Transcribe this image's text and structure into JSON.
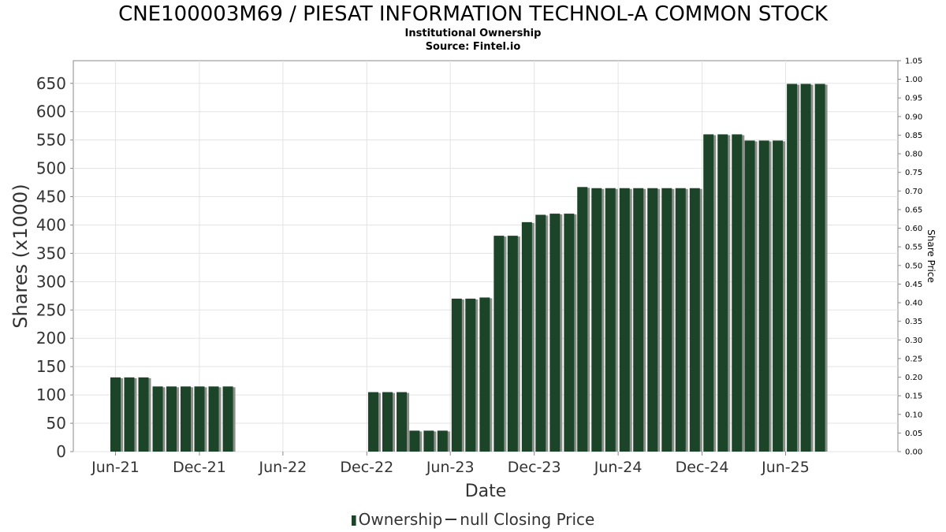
{
  "chart_data": {
    "type": "bar",
    "title": "CNE100003M69 / PIESAT INFORMATION TECHNOL-A COMMON STOCK",
    "subtitle_lines": [
      "Institutional Ownership",
      "Source: Fintel.io"
    ],
    "xlabel": "Date",
    "ylabel": "Shares (x1000)",
    "y2label": "Share Price",
    "ylim": [
      0,
      690
    ],
    "y2lim": [
      0,
      1.05
    ],
    "yticks": [
      0,
      50,
      100,
      150,
      200,
      250,
      300,
      350,
      400,
      450,
      500,
      550,
      600,
      650
    ],
    "y2ticks": [
      "0.00",
      "0.05",
      "0.10",
      "0.15",
      "0.20",
      "0.25",
      "0.30",
      "0.35",
      "0.40",
      "0.45",
      "0.50",
      "0.55",
      "0.60",
      "0.65",
      "0.70",
      "0.75",
      "0.80",
      "0.85",
      "0.90",
      "0.95",
      "1.00",
      "1.05"
    ],
    "xticks": [
      {
        "label": "Jun-21",
        "date": "2021-06-01"
      },
      {
        "label": "Dec-21",
        "date": "2021-12-01"
      },
      {
        "label": "Jun-22",
        "date": "2022-06-01"
      },
      {
        "label": "Dec-22",
        "date": "2022-12-01"
      },
      {
        "label": "Jun-23",
        "date": "2023-06-01"
      },
      {
        "label": "Dec-23",
        "date": "2023-12-01"
      },
      {
        "label": "Jun-24",
        "date": "2024-06-01"
      },
      {
        "label": "Dec-24",
        "date": "2024-12-01"
      },
      {
        "label": "Jun-25",
        "date": "2025-06-01"
      }
    ],
    "xlim": [
      "2021-03-01",
      "2026-02-01"
    ],
    "grid": true,
    "legend_position": "bottom",
    "series": [
      {
        "name": "Ownership",
        "color": "#1c4428",
        "points": [
          {
            "date": "2021-06-01",
            "value": 131
          },
          {
            "date": "2021-07-01",
            "value": 131
          },
          {
            "date": "2021-08-01",
            "value": 131
          },
          {
            "date": "2021-09-01",
            "value": 115
          },
          {
            "date": "2021-10-01",
            "value": 115
          },
          {
            "date": "2021-11-01",
            "value": 115
          },
          {
            "date": "2021-12-01",
            "value": 115
          },
          {
            "date": "2022-01-01",
            "value": 115
          },
          {
            "date": "2022-02-01",
            "value": 115
          },
          {
            "date": "2022-12-15",
            "value": 105
          },
          {
            "date": "2023-01-15",
            "value": 105
          },
          {
            "date": "2023-02-15",
            "value": 105
          },
          {
            "date": "2023-03-15",
            "value": 37
          },
          {
            "date": "2023-04-15",
            "value": 37
          },
          {
            "date": "2023-05-15",
            "value": 37
          },
          {
            "date": "2023-06-15",
            "value": 270
          },
          {
            "date": "2023-07-15",
            "value": 270
          },
          {
            "date": "2023-08-15",
            "value": 272
          },
          {
            "date": "2023-09-15",
            "value": 381
          },
          {
            "date": "2023-10-15",
            "value": 381
          },
          {
            "date": "2023-11-15",
            "value": 405
          },
          {
            "date": "2023-12-15",
            "value": 418
          },
          {
            "date": "2024-01-15",
            "value": 420
          },
          {
            "date": "2024-02-15",
            "value": 420
          },
          {
            "date": "2024-03-15",
            "value": 467
          },
          {
            "date": "2024-04-15",
            "value": 465
          },
          {
            "date": "2024-05-15",
            "value": 465
          },
          {
            "date": "2024-06-15",
            "value": 465
          },
          {
            "date": "2024-07-15",
            "value": 465
          },
          {
            "date": "2024-08-15",
            "value": 465
          },
          {
            "date": "2024-09-15",
            "value": 465
          },
          {
            "date": "2024-10-15",
            "value": 465
          },
          {
            "date": "2024-11-15",
            "value": 465
          },
          {
            "date": "2024-12-15",
            "value": 560
          },
          {
            "date": "2025-01-15",
            "value": 560
          },
          {
            "date": "2025-02-15",
            "value": 560
          },
          {
            "date": "2025-03-15",
            "value": 549
          },
          {
            "date": "2025-04-15",
            "value": 549
          },
          {
            "date": "2025-05-15",
            "value": 549
          },
          {
            "date": "2025-06-15",
            "value": 649
          },
          {
            "date": "2025-07-15",
            "value": 649
          },
          {
            "date": "2025-08-15",
            "value": 649
          }
        ]
      }
    ]
  },
  "legend": {
    "ownership_label": "Ownership",
    "price_label": "null Closing Price"
  }
}
